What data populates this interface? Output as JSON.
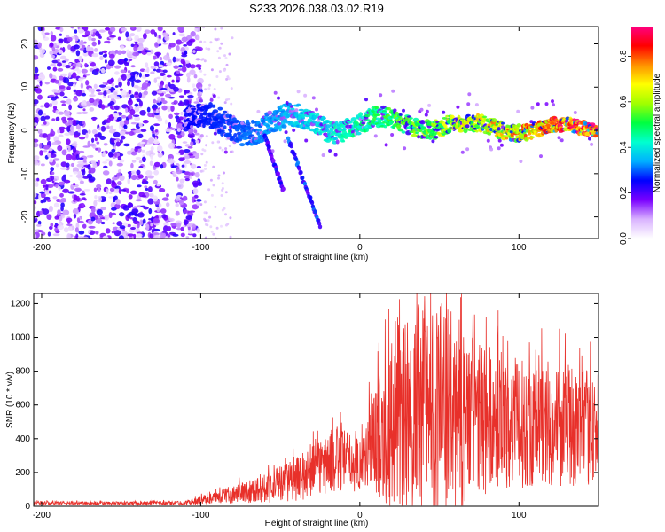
{
  "figure": {
    "title": "S233.2026.038.03.02.R19"
  },
  "chart_data": [
    {
      "type": "heatmap",
      "name": "spectrogram",
      "xlabel": "Height of straight line (km)",
      "ylabel": "Frequency (Hz)",
      "xlim": [
        -205,
        150
      ],
      "ylim": [
        -25,
        24
      ],
      "xticks": [
        -200,
        -100,
        0,
        100
      ],
      "yticks": [
        -20,
        -10,
        0,
        10,
        20
      ],
      "colorbar": {
        "label": "Normalized spectral amplitude",
        "range": [
          0,
          0.93
        ],
        "ticks": [
          0.0,
          0.2,
          0.4,
          0.6,
          0.8
        ],
        "colormap": [
          "#ffffff",
          "#d9b3ff",
          "#7a00ff",
          "#0000ff",
          "#00b0ff",
          "#00ffd0",
          "#00ff40",
          "#a0ff00",
          "#ffff00",
          "#ff9000",
          "#ff0000",
          "#ff0080"
        ]
      },
      "features": [
        {
          "label": "diffuse noise region",
          "x_range": [
            -205,
            -100
          ],
          "freq_range": [
            -25,
            24
          ],
          "amplitude": 0.15
        },
        {
          "label": "carrier band",
          "x_range": [
            -110,
            150
          ],
          "freq_center": [
            3,
            0
          ],
          "amplitude_range": [
            0.25,
            0.9
          ]
        },
        {
          "label": "descending branch",
          "x_start": -45,
          "x_end": -25,
          "freq_start": -2,
          "freq_end": -22,
          "amplitude": 0.25
        },
        {
          "label": "descending branch",
          "x_start": -60,
          "x_end": -48,
          "freq_start": -1,
          "freq_end": -14,
          "amplitude": 0.22
        }
      ]
    },
    {
      "type": "line",
      "name": "snr",
      "xlabel": "Height of straight line (km)",
      "ylabel": "SNR (10 * v/v)",
      "xlim": [
        -205,
        150
      ],
      "ylim": [
        0,
        1260
      ],
      "xticks": [
        -200,
        -100,
        0,
        100
      ],
      "yticks": [
        0,
        200,
        400,
        600,
        800,
        1000,
        1200
      ],
      "color": "#e8302a",
      "envelope": {
        "x": [
          -205,
          -150,
          -110,
          -100,
          -80,
          -60,
          -40,
          -25,
          -15,
          -5,
          0,
          10,
          20,
          30,
          40,
          50,
          60,
          70,
          90,
          110,
          130,
          150
        ],
        "mean": [
          20,
          18,
          20,
          35,
          70,
          110,
          160,
          230,
          280,
          260,
          250,
          400,
          480,
          520,
          560,
          560,
          540,
          520,
          500,
          480,
          470,
          460
        ],
        "amp": [
          10,
          10,
          12,
          25,
          50,
          90,
          130,
          170,
          200,
          180,
          150,
          330,
          500,
          600,
          650,
          650,
          600,
          500,
          400,
          370,
          360,
          330
        ]
      }
    }
  ]
}
